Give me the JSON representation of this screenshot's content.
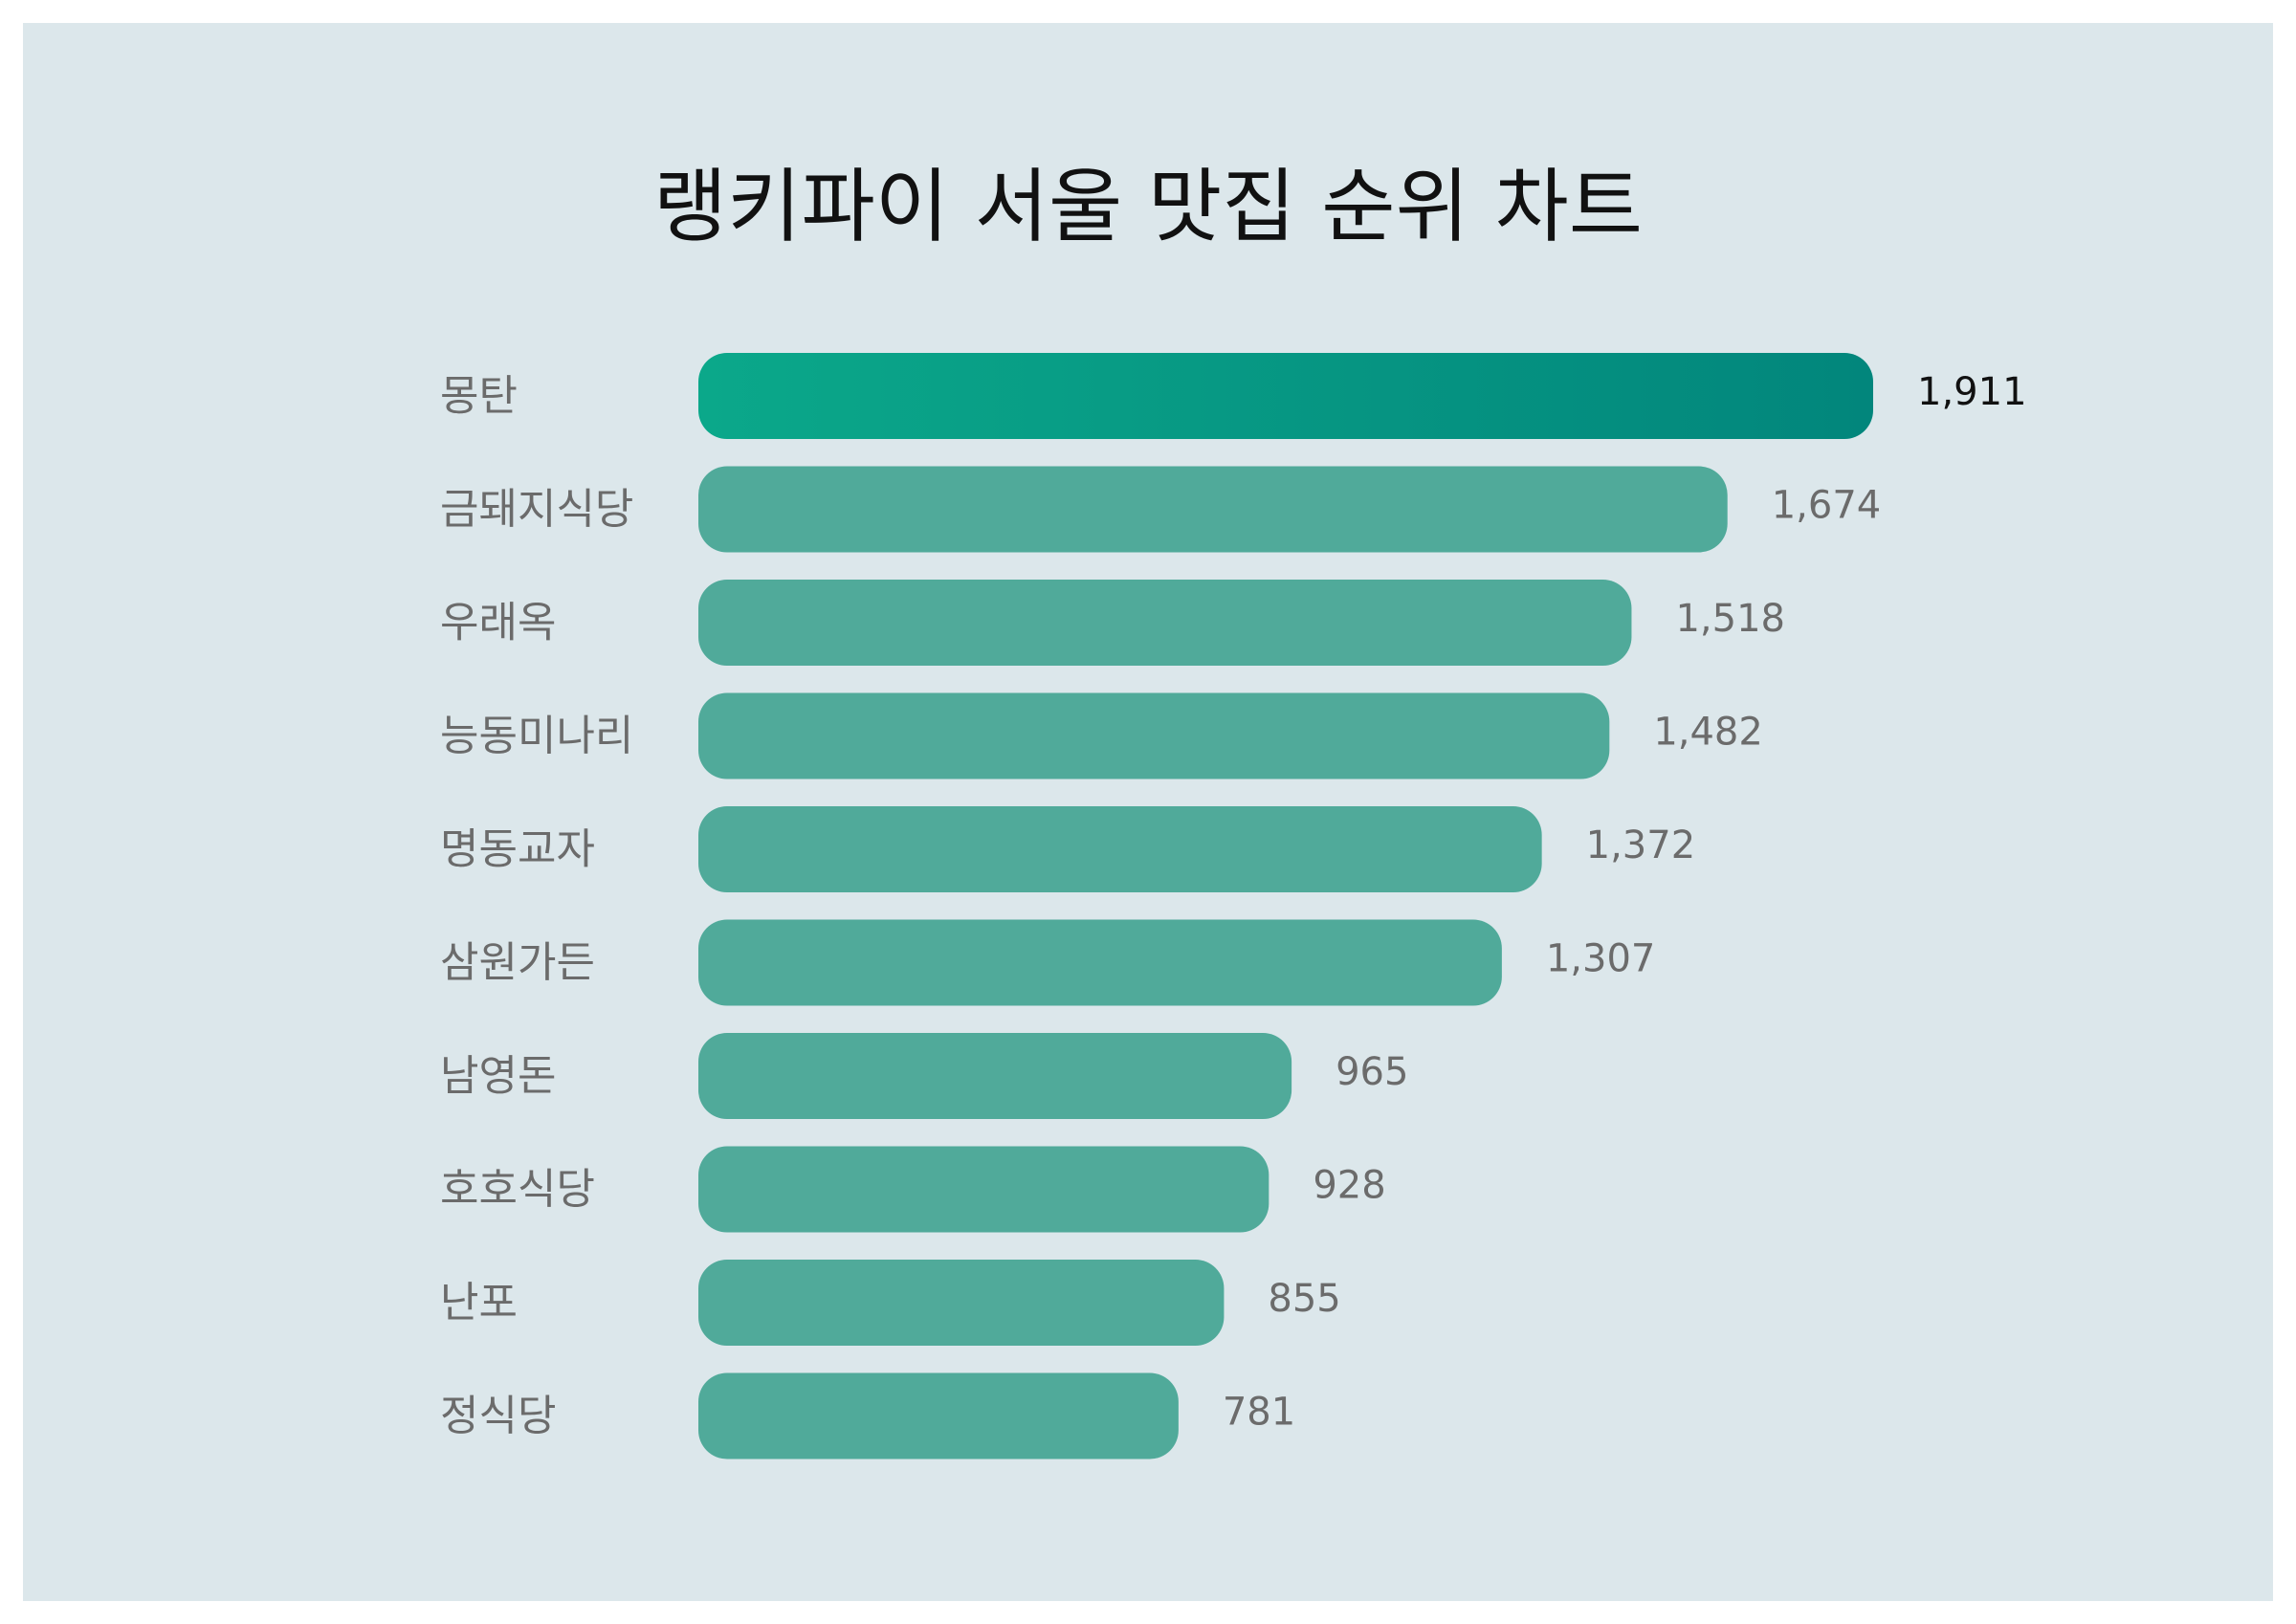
{
  "chart_data": {
    "type": "bar",
    "orientation": "horizontal",
    "title": "랭키파이 서울 맛집 순위 차트",
    "categories": [
      "몽탄",
      "금돼지식당",
      "우래옥",
      "능동미나리",
      "명동교자",
      "삼원가든",
      "남영돈",
      "호호식당",
      "난포",
      "정식당"
    ],
    "values": [
      1911,
      1674,
      1518,
      1482,
      1372,
      1307,
      965,
      928,
      855,
      781
    ],
    "value_labels": [
      "1,911",
      "1,674",
      "1,518",
      "1,482",
      "1,372",
      "1,307",
      "965",
      "928",
      "855",
      "781"
    ],
    "xlim": [
      0,
      1911
    ],
    "grid": false,
    "legend": "none"
  },
  "colors": {
    "background": "#dce7eb",
    "bar": "#50aa9a",
    "top_bar_start": "#0ba88a",
    "top_bar_end": "#02867c"
  }
}
